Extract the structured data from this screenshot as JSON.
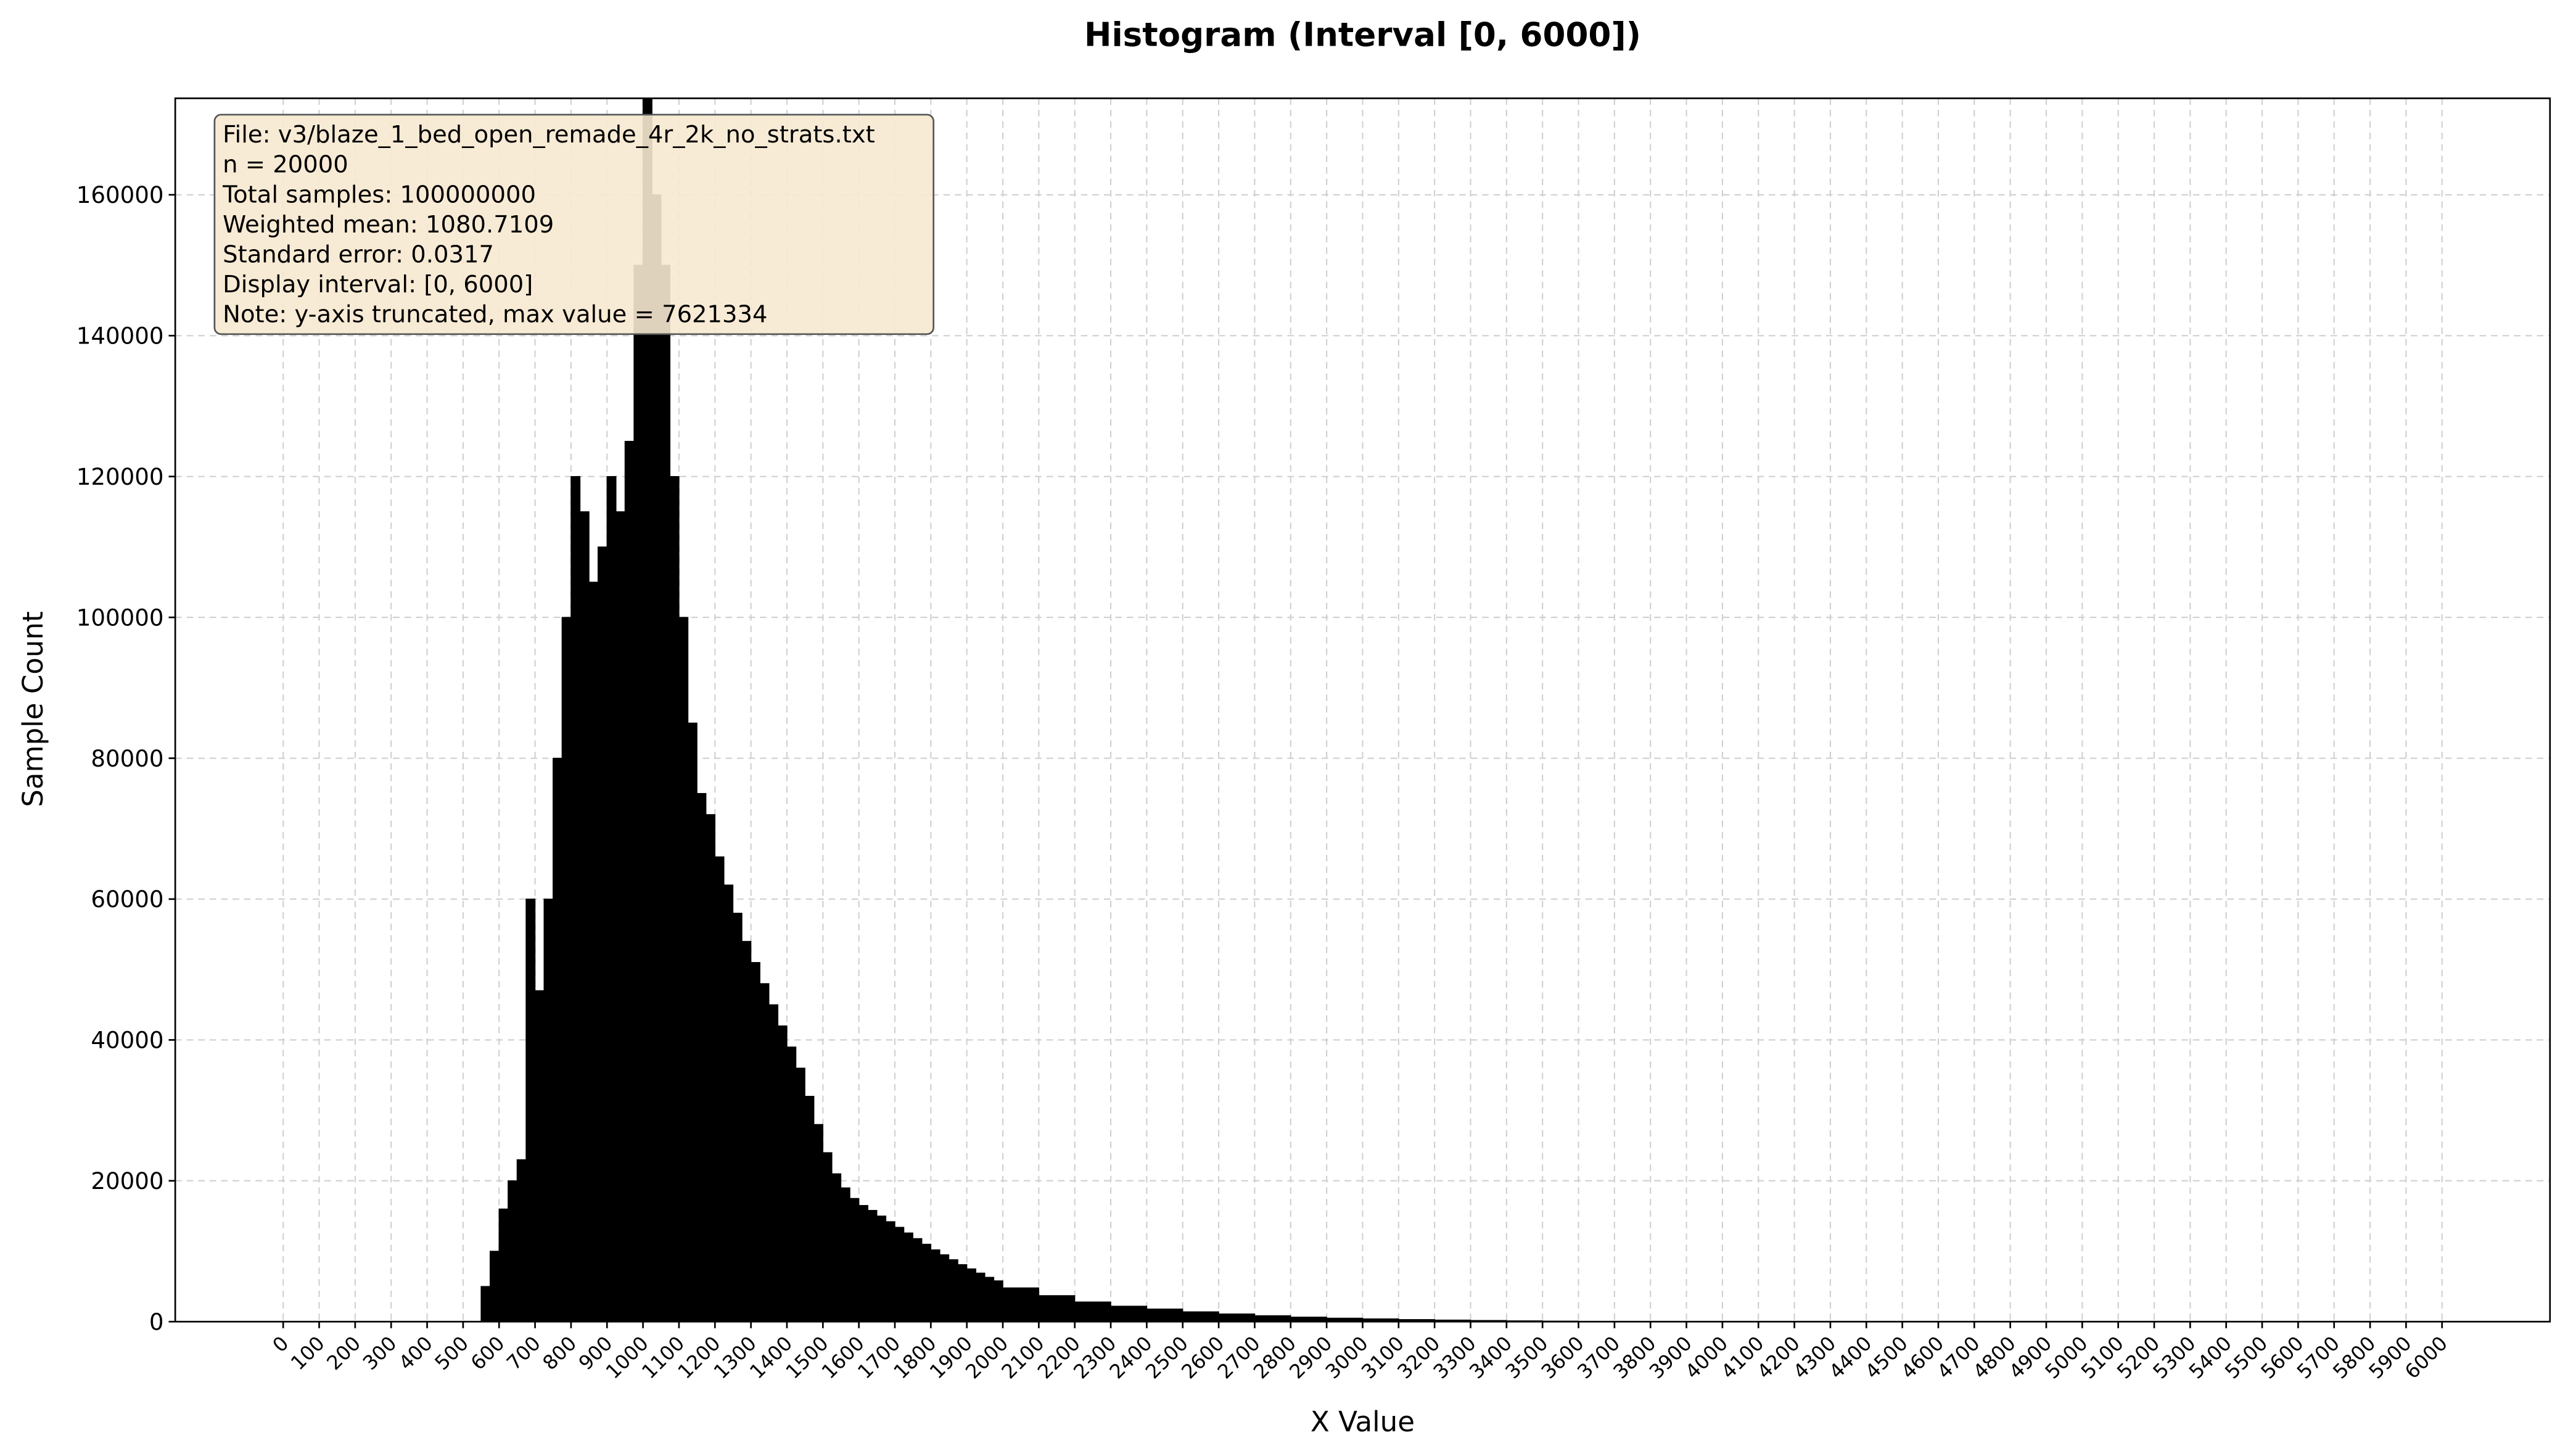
{
  "chart_data": {
    "type": "histogram",
    "title": "Histogram (Interval [0, 6000])",
    "x_label": "X Value",
    "y_label": "Sample Count",
    "annotation_lines": [
      "File: v3/blaze_1_bed_open_remade_4r_2k_no_strats.txt",
      "n = 20000",
      "Total samples: 100000000",
      "Weighted mean: 1080.7109",
      "Standard error: 0.0317",
      "Display interval: [0, 6000]",
      "Note: y-axis truncated, max value = 7621334"
    ],
    "color": "#000000",
    "bins": [
      550,
      575,
      600,
      625,
      650,
      675,
      700,
      725,
      750,
      775,
      800,
      825,
      850,
      875,
      900,
      925,
      950,
      975,
      1000,
      1025,
      1050,
      1075,
      1100,
      1125,
      1150,
      1175,
      1200,
      1225,
      1250,
      1275,
      1300,
      1325,
      1350,
      1375,
      1400,
      1425,
      1450,
      1475,
      1500,
      1525,
      1550,
      1575,
      1600,
      1625,
      1650,
      1675,
      1700,
      1725,
      1750,
      1775,
      1800,
      1825,
      1850,
      1875,
      1900,
      1925,
      1950,
      1975,
      2000,
      2100,
      2200,
      2300,
      2400,
      2500,
      2600,
      2700,
      2800,
      2900,
      3000,
      3100,
      3200,
      3300,
      3400,
      3500,
      3600
    ],
    "values": [
      5000,
      10000,
      16000,
      20000,
      23000,
      60000,
      47000,
      60000,
      80000,
      100000,
      120000,
      115000,
      105000,
      110000,
      120000,
      115000,
      125000,
      150000,
      180000,
      160000,
      150000,
      120000,
      100000,
      85000,
      75000,
      72000,
      66000,
      62000,
      58000,
      54000,
      51000,
      48000,
      45000,
      42000,
      39000,
      36000,
      32000,
      28000,
      24000,
      21000,
      19000,
      17500,
      16500,
      15800,
      15000,
      14200,
      13400,
      12600,
      11800,
      11000,
      10200,
      9500,
      8800,
      8100,
      7500,
      6900,
      6300,
      5800,
      4800,
      3700,
      2800,
      2200,
      1800,
      1400,
      1100,
      850,
      650,
      500,
      400,
      300,
      230,
      170,
      120,
      80
    ],
    "xlim": [
      -300,
      6300
    ],
    "ylim": [
      0,
      173700
    ],
    "xticks": [
      0,
      100,
      200,
      300,
      400,
      500,
      600,
      700,
      800,
      900,
      1000,
      1100,
      1200,
      1300,
      1400,
      1500,
      1600,
      1700,
      1800,
      1900,
      2000,
      2100,
      2200,
      2300,
      2400,
      2500,
      2600,
      2700,
      2800,
      2900,
      3000,
      3100,
      3200,
      3300,
      3400,
      3500,
      3600,
      3700,
      3800,
      3900,
      4000,
      4100,
      4200,
      4300,
      4400,
      4500,
      4600,
      4700,
      4800,
      4900,
      5000,
      5100,
      5200,
      5300,
      5400,
      5500,
      5600,
      5700,
      5800,
      5900,
      6000
    ],
    "yticks": [
      0,
      20000,
      40000,
      60000,
      80000,
      100000,
      120000,
      140000,
      160000
    ],
    "grid": true
  }
}
